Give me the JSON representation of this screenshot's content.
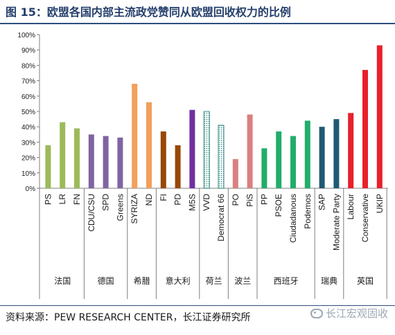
{
  "title": "图 15：欧盟各国内部主流政党赞同从欧盟回收权力的比例",
  "source": "资料来源：PEW RESEARCH CENTER，长江证券研究所",
  "watermark": {
    "text": "长江宏观固收",
    "icon": "wechat-icon"
  },
  "chart_data": {
    "type": "bar",
    "ylim": [
      0,
      100
    ],
    "yticks": [
      "0%",
      "10%",
      "20%",
      "30%",
      "40%",
      "50%",
      "60%",
      "70%",
      "80%",
      "90%",
      "100%"
    ],
    "grid": false,
    "groups": [
      {
        "country": "法国",
        "parties": [
          {
            "name": "PS",
            "value": 28,
            "color": "#9bbb59"
          },
          {
            "name": "LR",
            "value": 43,
            "color": "#9bbb59"
          },
          {
            "name": "FN",
            "value": 39,
            "color": "#9bbb59"
          }
        ]
      },
      {
        "country": "德国",
        "parties": [
          {
            "name": "CDU/CSU",
            "value": 35,
            "color": "#8064a2"
          },
          {
            "name": "SPD",
            "value": 34,
            "color": "#8064a2"
          },
          {
            "name": "Greens",
            "value": 33,
            "color": "#8064a2"
          }
        ]
      },
      {
        "country": "希腊",
        "parties": [
          {
            "name": "SYRIZA",
            "value": 68,
            "color": "#f2a05a"
          },
          {
            "name": "ND",
            "value": 56,
            "color": "#f2a05a"
          }
        ]
      },
      {
        "country": "意大利",
        "parties": [
          {
            "name": "FI",
            "value": 37,
            "color": "#974806"
          },
          {
            "name": "PD",
            "value": 28,
            "color": "#974806"
          },
          {
            "name": "M5S",
            "value": 51,
            "color": "#7030a0"
          }
        ]
      },
      {
        "country": "荷兰",
        "parties": [
          {
            "name": "VVD",
            "value": 50,
            "color": "#2f8a80",
            "pattern": "dotted"
          },
          {
            "name": "Democrat 66",
            "value": 41,
            "color": "#2f8a80",
            "pattern": "dotted"
          }
        ]
      },
      {
        "country": "波兰",
        "parties": [
          {
            "name": "PO",
            "value": 19,
            "color": "#d98080"
          },
          {
            "name": "PiS",
            "value": 48,
            "color": "#d98080"
          }
        ]
      },
      {
        "country": "西班牙",
        "parties": [
          {
            "name": "PP",
            "value": 26,
            "color": "#22ad6a"
          },
          {
            "name": "PSOE",
            "value": 37,
            "color": "#22ad6a"
          },
          {
            "name": "Ciudadanous",
            "value": 34,
            "color": "#22ad6a"
          },
          {
            "name": "Podemos",
            "value": 44,
            "color": "#22ad6a"
          }
        ]
      },
      {
        "country": "瑞典",
        "parties": [
          {
            "name": "SAP",
            "value": 40,
            "color": "#1f5a74"
          },
          {
            "name": "Moderate Party",
            "value": 45,
            "color": "#1f5a74"
          }
        ]
      },
      {
        "country": "英国",
        "parties": [
          {
            "name": "Labour",
            "value": 49,
            "color": "#e8202a"
          },
          {
            "name": "Conservative",
            "value": 77,
            "color": "#e8202a"
          },
          {
            "name": "UKIP",
            "value": 93,
            "color": "#e8202a"
          }
        ]
      }
    ]
  }
}
